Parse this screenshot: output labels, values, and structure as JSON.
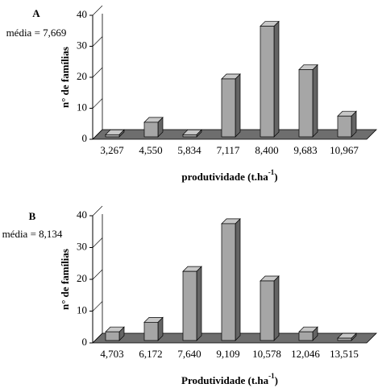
{
  "chart_data": [
    {
      "type": "bar3d",
      "title": "A",
      "subtitle": "média = 7,669",
      "ylabel": "n° de famílias",
      "xlabel": [
        "produtividade (t.ha",
        "-1",
        ")"
      ],
      "categories": [
        "3,267",
        "4,550",
        "5,834",
        "7,117",
        "8,400",
        "9,683",
        "10,967"
      ],
      "values": [
        2,
        6,
        2,
        20,
        37,
        23,
        8
      ],
      "color": "#a6a6a6",
      "ylim": [
        0,
        40
      ],
      "yticks": [
        0,
        10,
        20,
        30,
        40
      ]
    },
    {
      "type": "bar3d",
      "title": "B",
      "subtitle": "média = 8,134",
      "ylabel": "n° de famílias",
      "xlabel": [
        "Produtividade (t.ha",
        "-1",
        ")"
      ],
      "categories": [
        "4,703",
        "6,172",
        "7,640",
        "9,109",
        "10,578",
        "12,046",
        "13,515"
      ],
      "values": [
        4,
        7,
        23,
        38,
        20,
        4,
        2
      ],
      "color": "#a6a6a6",
      "ylim": [
        0,
        40
      ],
      "yticks": [
        0,
        10,
        20,
        30,
        40
      ]
    }
  ]
}
